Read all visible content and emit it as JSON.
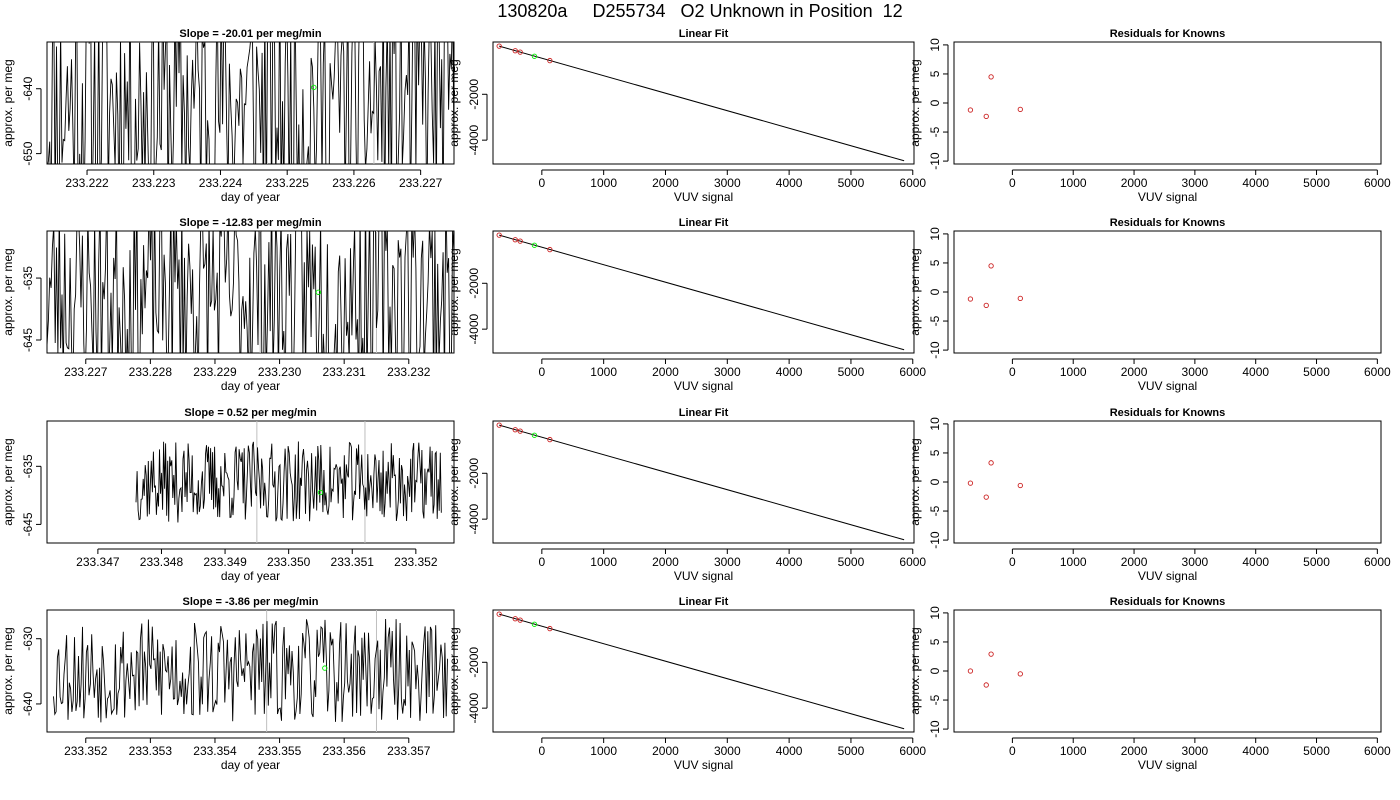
{
  "page": {
    "title": "130820a     D255734   O2 Unknown in Position  12"
  },
  "colors": {
    "line": "#000000",
    "axis": "#000000",
    "vline": "#bebebe",
    "known_point": "#cc2222",
    "unknown_point": "#00ee00"
  },
  "chart_data": [
    {
      "type": "line",
      "panel": "timeseries",
      "row": 1,
      "title": "Slope =  -20.01  per meg/min",
      "xlabel": "day of year",
      "ylabel": "approx. per meg",
      "xlim": [
        233.2214,
        233.2275
      ],
      "ylim": [
        -651.6,
        -632.8
      ],
      "xticks": [
        233.222,
        233.223,
        233.224,
        233.225,
        233.226,
        233.227
      ],
      "xtick_labels": [
        "233.222",
        "233.223",
        "233.224",
        "233.225",
        "233.226",
        "233.227"
      ],
      "yticks": [
        -640,
        -650
      ],
      "ytick_labels": [
        "-640",
        "-650"
      ],
      "vlines": [
        233.2247,
        233.2263
      ],
      "seed": 11,
      "amp": 20,
      "unknown_point": {
        "x": 233.2254,
        "y": -639.8
      },
      "x_start": 233.2214,
      "x_end": 233.2275
    },
    {
      "type": "scatter",
      "panel": "linear_fit",
      "row": 1,
      "title": "Linear Fit",
      "xlabel": "VUV signal",
      "ylabel": "approx. per meg",
      "xlim": [
        -790,
        6020
      ],
      "ylim": [
        -5040,
        280
      ],
      "xticks": [
        0,
        1000,
        2000,
        3000,
        4000,
        5000,
        6000
      ],
      "xtick_labels": [
        "0",
        "1000",
        "2000",
        "3000",
        "4000",
        "5000",
        "6000"
      ],
      "yticks": [
        -2000,
        -4000
      ],
      "ytick_labels": [
        "-2000",
        "-4000"
      ],
      "fit_line": {
        "x": [
          -690,
          5860
        ],
        "y": [
          101,
          -4900
        ]
      },
      "knowns": {
        "x": [
          -690,
          -430,
          -350,
          130
        ],
        "y": [
          101,
          -100,
          -160,
          -530
        ]
      },
      "unknowns": {
        "x": [
          -120
        ],
        "y": [
          -340
        ]
      }
    },
    {
      "type": "scatter",
      "panel": "residuals",
      "row": 1,
      "title": "Residuals for Knowns",
      "xlabel": "VUV signal",
      "ylabel": "approx. per meg",
      "xlim": [
        -960,
        6060
      ],
      "ylim": [
        -10.5,
        10.5
      ],
      "xticks": [
        0,
        1000,
        2000,
        3000,
        4000,
        5000,
        6000
      ],
      "xtick_labels": [
        "0",
        "1000",
        "2000",
        "3000",
        "4000",
        "5000",
        "6000"
      ],
      "yticks": [
        10,
        5,
        0,
        -5,
        -10
      ],
      "ytick_labels": [
        "10",
        "5",
        "0",
        "-5",
        "-10"
      ],
      "knowns": {
        "x": [
          -690,
          -430,
          -350,
          130
        ],
        "y": [
          -1.2,
          -2.3,
          4.5,
          -1.1
        ]
      }
    },
    {
      "type": "line",
      "panel": "timeseries",
      "row": 2,
      "title": "Slope =  -12.83  per meg/min",
      "xlabel": "day of year",
      "ylabel": "approx. per meg",
      "xlim": [
        233.2264,
        233.2327
      ],
      "ylim": [
        -647.1,
        -627.4
      ],
      "xticks": [
        233.227,
        233.228,
        233.229,
        233.23,
        233.231,
        233.232
      ],
      "xtick_labels": [
        "233.227",
        "233.228",
        "233.229",
        "233.230",
        "233.231",
        "233.232"
      ],
      "yticks": [
        -635,
        -645
      ],
      "ytick_labels": [
        "-635",
        "-645"
      ],
      "vlines": [
        233.2297,
        233.2315
      ],
      "seed": 23,
      "amp": 17,
      "unknown_point": {
        "x": 233.2306,
        "y": -637.3
      },
      "x_start": 233.2264,
      "x_end": 233.2327
    },
    {
      "type": "scatter",
      "panel": "linear_fit",
      "row": 2,
      "title": "Linear Fit",
      "xlabel": "VUV signal",
      "ylabel": "approx. per meg",
      "xlim": [
        -790,
        6020
      ],
      "ylim": [
        -5040,
        280
      ],
      "xticks": [
        0,
        1000,
        2000,
        3000,
        4000,
        5000,
        6000
      ],
      "xtick_labels": [
        "0",
        "1000",
        "2000",
        "3000",
        "4000",
        "5000",
        "6000"
      ],
      "yticks": [
        -2000,
        -4000
      ],
      "ytick_labels": [
        "-2000",
        "-4000"
      ],
      "fit_line": {
        "x": [
          -690,
          5860
        ],
        "y": [
          101,
          -4900
        ]
      },
      "knowns": {
        "x": [
          -690,
          -430,
          -350,
          130
        ],
        "y": [
          101,
          -100,
          -160,
          -530
        ]
      },
      "unknowns": {
        "x": [
          -120
        ],
        "y": [
          -340
        ]
      }
    },
    {
      "type": "scatter",
      "panel": "residuals",
      "row": 2,
      "title": "Residuals for Knowns",
      "xlabel": "VUV signal",
      "ylabel": "approx. per meg",
      "xlim": [
        -960,
        6060
      ],
      "ylim": [
        -10.5,
        10.5
      ],
      "xticks": [
        0,
        1000,
        2000,
        3000,
        4000,
        5000,
        6000
      ],
      "xtick_labels": [
        "0",
        "1000",
        "2000",
        "3000",
        "4000",
        "5000",
        "6000"
      ],
      "yticks": [
        10,
        5,
        0,
        -5,
        -10
      ],
      "ytick_labels": [
        "10",
        "5",
        "0",
        "-5",
        "-10"
      ],
      "knowns": {
        "x": [
          -690,
          -430,
          -350,
          130
        ],
        "y": [
          -1.2,
          -2.3,
          4.5,
          -1.1
        ]
      }
    },
    {
      "type": "line",
      "panel": "timeseries",
      "row": 3,
      "title": "Slope =  0.52  per meg/min",
      "xlabel": "day of year",
      "ylabel": "approx. per meg",
      "xlim": [
        233.3462,
        233.3526
      ],
      "ylim": [
        -648.2,
        -627.2
      ],
      "xticks": [
        233.347,
        233.348,
        233.349,
        233.35,
        233.351,
        233.352
      ],
      "xtick_labels": [
        "233.347",
        "233.348",
        "233.349",
        "233.350",
        "233.351",
        "233.352"
      ],
      "yticks": [
        -635,
        -645
      ],
      "ytick_labels": [
        "-635",
        "-645"
      ],
      "vlines": [
        233.3495,
        233.3512
      ],
      "seed": 37,
      "amp": 7,
      "unknown_point": {
        "x": 233.3505,
        "y": -639.5
      },
      "x_start": 233.3476,
      "x_end": 233.3524
    },
    {
      "type": "scatter",
      "panel": "linear_fit",
      "row": 3,
      "title": "Linear Fit",
      "xlabel": "VUV signal",
      "ylabel": "approx. per meg",
      "xlim": [
        -790,
        6020
      ],
      "ylim": [
        -5040,
        280
      ],
      "xticks": [
        0,
        1000,
        2000,
        3000,
        4000,
        5000,
        6000
      ],
      "xtick_labels": [
        "0",
        "1000",
        "2000",
        "3000",
        "4000",
        "5000",
        "6000"
      ],
      "yticks": [
        -2000,
        -4000
      ],
      "ytick_labels": [
        "-2000",
        "-4000"
      ],
      "fit_line": {
        "x": [
          -690,
          5860
        ],
        "y": [
          101,
          -4900
        ]
      },
      "knowns": {
        "x": [
          -690,
          -430,
          -350,
          130
        ],
        "y": [
          101,
          -100,
          -160,
          -530
        ]
      },
      "unknowns": {
        "x": [
          -120
        ],
        "y": [
          -340
        ]
      }
    },
    {
      "type": "scatter",
      "panel": "residuals",
      "row": 3,
      "title": "Residuals for Knowns",
      "xlabel": "VUV signal",
      "ylabel": "approx. per meg",
      "xlim": [
        -960,
        6060
      ],
      "ylim": [
        -10.5,
        10.5
      ],
      "xticks": [
        0,
        1000,
        2000,
        3000,
        4000,
        5000,
        6000
      ],
      "xtick_labels": [
        "0",
        "1000",
        "2000",
        "3000",
        "4000",
        "5000",
        "6000"
      ],
      "yticks": [
        10,
        5,
        0,
        -5,
        -10
      ],
      "ytick_labels": [
        "10",
        "5",
        "0",
        "-5",
        "-10"
      ],
      "knowns": {
        "x": [
          -690,
          -430,
          -350,
          130
        ],
        "y": [
          -0.2,
          -2.6,
          3.3,
          -0.6
        ]
      }
    },
    {
      "type": "line",
      "panel": "timeseries",
      "row": 4,
      "title": "Slope =  -3.86  per meg/min",
      "xlabel": "day of year",
      "ylabel": "approx. per meg",
      "xlim": [
        233.3514,
        233.3577
      ],
      "ylim": [
        -644.3,
        -625.6
      ],
      "xticks": [
        233.352,
        233.353,
        233.354,
        233.355,
        233.356,
        233.357
      ],
      "xtick_labels": [
        "233.352",
        "233.353",
        "233.354",
        "233.355",
        "233.356",
        "233.357"
      ],
      "yticks": [
        -630,
        -640
      ],
      "ytick_labels": [
        "-630",
        "-640"
      ],
      "vlines": [
        233.3548,
        233.3565
      ],
      "seed": 53,
      "amp": 8,
      "unknown_point": {
        "x": 233.3557,
        "y": -634.5
      },
      "x_start": 233.3515,
      "x_end": 233.3576
    },
    {
      "type": "scatter",
      "panel": "linear_fit",
      "row": 4,
      "title": "Linear Fit",
      "xlabel": "VUV signal",
      "ylabel": "approx. per meg",
      "xlim": [
        -790,
        6020
      ],
      "ylim": [
        -5040,
        280
      ],
      "xticks": [
        0,
        1000,
        2000,
        3000,
        4000,
        5000,
        6000
      ],
      "xtick_labels": [
        "0",
        "1000",
        "2000",
        "3000",
        "4000",
        "5000",
        "6000"
      ],
      "yticks": [
        -2000,
        -4000
      ],
      "ytick_labels": [
        "-2000",
        "-4000"
      ],
      "fit_line": {
        "x": [
          -690,
          5860
        ],
        "y": [
          101,
          -4900
        ]
      },
      "knowns": {
        "x": [
          -690,
          -430,
          -350,
          130
        ],
        "y": [
          101,
          -100,
          -160,
          -530
        ]
      },
      "unknowns": {
        "x": [
          -120
        ],
        "y": [
          -340
        ]
      }
    },
    {
      "type": "scatter",
      "panel": "residuals",
      "row": 4,
      "title": "Residuals for Knowns",
      "xlabel": "VUV signal",
      "ylabel": "approx. per meg",
      "xlim": [
        -960,
        6060
      ],
      "ylim": [
        -10.5,
        10.5
      ],
      "xticks": [
        0,
        1000,
        2000,
        3000,
        4000,
        5000,
        6000
      ],
      "xtick_labels": [
        "0",
        "1000",
        "2000",
        "3000",
        "4000",
        "5000",
        "6000"
      ],
      "yticks": [
        10,
        5,
        0,
        -5,
        -10
      ],
      "ytick_labels": [
        "10",
        "5",
        "0",
        "-5",
        "-10"
      ],
      "knowns": {
        "x": [
          -690,
          -430,
          -350,
          130
        ],
        "y": [
          0.0,
          -2.4,
          2.9,
          -0.5
        ]
      }
    }
  ]
}
